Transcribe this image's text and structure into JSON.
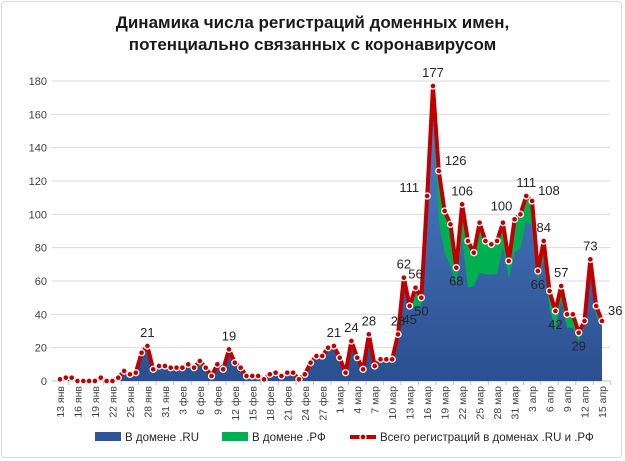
{
  "chart_data": {
    "type": "area",
    "title_line1": "Динамика числа регистраций доменных имен,",
    "title_line2": "потенциально связанных с коронавирусом",
    "ylim": [
      0,
      180
    ],
    "yticks": [
      0,
      20,
      40,
      60,
      80,
      100,
      120,
      140,
      160,
      180
    ],
    "grid": true,
    "legend_position": "bottom",
    "x": [
      "13 янв",
      "14 янв",
      "15 янв",
      "16 янв",
      "17 янв",
      "18 янв",
      "19 янв",
      "20 янв",
      "21 янв",
      "22 янв",
      "23 янв",
      "24 янв",
      "25 янв",
      "26 янв",
      "27 янв",
      "28 янв",
      "29 янв",
      "30 янв",
      "31 янв",
      "1 фев",
      "2 фев",
      "3 фев",
      "4 фев",
      "5 фев",
      "6 фев",
      "7 фев",
      "8 фев",
      "9 фев",
      "10 фев",
      "11 фев",
      "12 фев",
      "13 фев",
      "14 фев",
      "15 фев",
      "16 фев",
      "17 фев",
      "18 фев",
      "19 фев",
      "20 фев",
      "21 фев",
      "22 фев",
      "23 фев",
      "24 фев",
      "25 фев",
      "26 фев",
      "27 фев",
      "28 фев",
      "29 фев",
      "1 мар",
      "2 мар",
      "3 мар",
      "4 мар",
      "5 мар",
      "6 мар",
      "7 мар",
      "8 мар",
      "9 мар",
      "10 мар",
      "11 мар",
      "12 мар",
      "13 мар",
      "14 мар",
      "15 мар",
      "16 мар",
      "17 мар",
      "18 мар",
      "19 мар",
      "20 мар",
      "21 мар",
      "22 мар",
      "23 мар",
      "24 мар",
      "25 мар",
      "26 мар",
      "27 мар",
      "28 мар",
      "29 мар",
      "30 мар",
      "31 мар",
      "1 апр",
      "2 апр",
      "3 апр",
      "4 апр",
      "5 апр",
      "6 апр",
      "7 апр",
      "8 апр",
      "9 апр",
      "10 апр",
      "11 апр",
      "12 апр",
      "13 апр",
      "14 апр",
      "15 апр"
    ],
    "series": [
      {
        "name": "В домене .RU",
        "color": "#2f5597",
        "values": [
          1,
          2,
          2,
          0,
          0,
          0,
          0,
          1,
          0,
          0,
          2,
          5,
          4,
          5,
          16,
          20,
          7,
          8,
          8,
          8,
          8,
          8,
          9,
          8,
          9,
          8,
          3,
          9,
          7,
          18,
          11,
          8,
          3,
          3,
          3,
          1,
          4,
          5,
          3,
          5,
          5,
          1,
          4,
          11,
          15,
          15,
          20,
          20,
          14,
          5,
          24,
          14,
          7,
          27,
          9,
          13,
          13,
          13,
          28,
          61,
          44,
          45,
          45,
          106,
          160,
          96,
          77,
          69,
          58,
          86,
          56,
          57,
          65,
          64,
          64,
          64,
          80,
          62,
          77,
          80,
          96,
          93,
          60,
          74,
          44,
          30,
          49,
          32,
          32,
          24,
          33,
          63,
          39,
          33
        ]
      },
      {
        "name": "В домене .РФ",
        "color": "#00b050",
        "values": [
          0,
          0,
          0,
          0,
          0,
          0,
          0,
          1,
          0,
          0,
          0,
          1,
          0,
          0,
          1,
          1,
          0,
          1,
          1,
          0,
          0,
          0,
          1,
          0,
          3,
          0,
          0,
          1,
          0,
          1,
          0,
          0,
          0,
          0,
          0,
          0,
          0,
          0,
          0,
          0,
          0,
          0,
          0,
          0,
          0,
          0,
          0,
          1,
          0,
          0,
          0,
          0,
          0,
          1,
          0,
          0,
          0,
          0,
          0,
          1,
          1,
          11,
          5,
          5,
          17,
          30,
          25,
          25,
          10,
          20,
          28,
          20,
          30,
          20,
          18,
          20,
          15,
          10,
          20,
          20,
          15,
          15,
          6,
          10,
          10,
          12,
          8,
          8,
          8,
          5,
          3,
          10,
          6,
          3
        ]
      },
      {
        "name": "Всего регистраций в доменах .RU и .РФ",
        "color": "#c00000",
        "values": [
          1,
          2,
          2,
          0,
          0,
          0,
          0,
          2,
          0,
          0,
          2,
          6,
          4,
          5,
          17,
          21,
          7,
          9,
          9,
          8,
          8,
          8,
          10,
          8,
          12,
          8,
          3,
          10,
          7,
          19,
          11,
          8,
          3,
          3,
          3,
          1,
          4,
          5,
          3,
          5,
          5,
          1,
          4,
          11,
          15,
          15,
          20,
          21,
          14,
          5,
          24,
          14,
          7,
          28,
          9,
          13,
          13,
          13,
          28,
          62,
          45,
          56,
          50,
          111,
          177,
          126,
          102,
          94,
          68,
          106,
          84,
          77,
          95,
          84,
          82,
          84,
          95,
          72,
          97,
          100,
          111,
          108,
          66,
          84,
          54,
          42,
          57,
          40,
          40,
          29,
          36,
          73,
          45,
          36
        ]
      }
    ],
    "data_labels": [
      {
        "x": "28 янв",
        "text": "21",
        "pos": "above"
      },
      {
        "x": "11 фев",
        "text": "19",
        "pos": "above"
      },
      {
        "x": "29 фев",
        "text": "21",
        "pos": "above"
      },
      {
        "x": "3 мар",
        "text": "24",
        "pos": "above"
      },
      {
        "x": "6 мар",
        "text": "28",
        "pos": "above"
      },
      {
        "x": "11 мар",
        "text": "28",
        "pos": "above"
      },
      {
        "x": "12 мар",
        "text": "62",
        "pos": "above"
      },
      {
        "x": "13 мар",
        "text": "45",
        "pos": "below"
      },
      {
        "x": "14 мар",
        "text": "56",
        "pos": "above"
      },
      {
        "x": "15 мар",
        "text": "50",
        "pos": "below"
      },
      {
        "x": "16 мар",
        "text": "111",
        "pos": "left"
      },
      {
        "x": "17 мар",
        "text": "177",
        "pos": "above"
      },
      {
        "x": "18 мар",
        "text": "126",
        "pos": "right"
      },
      {
        "x": "21 мар",
        "text": "68",
        "pos": "below"
      },
      {
        "x": "22 мар",
        "text": "106",
        "pos": "above"
      },
      {
        "x": "1 апр",
        "text": "100",
        "pos": "left"
      },
      {
        "x": "2 апр",
        "text": "111",
        "pos": "above"
      },
      {
        "x": "3 апр",
        "text": "108",
        "pos": "right"
      },
      {
        "x": "4 апр",
        "text": "66",
        "pos": "below"
      },
      {
        "x": "5 апр",
        "text": "84",
        "pos": "above"
      },
      {
        "x": "7 апр",
        "text": "42",
        "pos": "below"
      },
      {
        "x": "8 апр",
        "text": "57",
        "pos": "above"
      },
      {
        "x": "11 апр",
        "text": "29",
        "pos": "below"
      },
      {
        "x": "13 апр",
        "text": "73",
        "pos": "above"
      },
      {
        "x": "15 апр",
        "text": "36",
        "pos": "right"
      }
    ]
  }
}
